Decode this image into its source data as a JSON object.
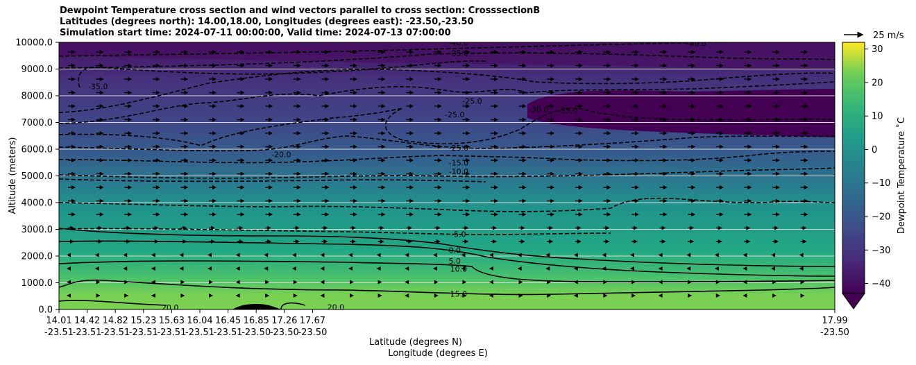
{
  "figure": {
    "title_lines": [
      "Dewpoint Temperature cross section and wind vectors parallel to cross section: CrosssectionB",
      "Latitudes (degrees north): 14.00,18.00, Longitudes (degrees east): -23.50,-23.50",
      "Simulation start time: 2024-07-11 00:00:00, Valid time: 2024-07-13 07:00:00"
    ]
  },
  "chart_data": {
    "type": "heatmap",
    "variable": "Dewpoint Temperature",
    "ylabel": "Altitude (meters)",
    "xlabel_lines": [
      "Latitude (degrees N)",
      "Longitude (degrees E)"
    ],
    "ylim": [
      0,
      10000
    ],
    "y_ticks": [
      "0.0",
      "1000.0",
      "2000.0",
      "3000.0",
      "4000.0",
      "5000.0",
      "6000.0",
      "7000.0",
      "8000.0",
      "9000.0",
      "10000.0"
    ],
    "x_tick_labels": [
      {
        "lat": "14.01",
        "lon": "-23.51"
      },
      {
        "lat": "14.42",
        "lon": "-23.51"
      },
      {
        "lat": "14.82",
        "lon": "-23.51"
      },
      {
        "lat": "15.23",
        "lon": "-23.51"
      },
      {
        "lat": "15.63",
        "lon": "-23.51"
      },
      {
        "lat": "16.04",
        "lon": "-23.51"
      },
      {
        "lat": "16.45",
        "lon": "-23.51"
      },
      {
        "lat": "16.85",
        "lon": "-23.50"
      },
      {
        "lat": "17.26",
        "lon": "-23.50"
      },
      {
        "lat": "17.67",
        "lon": "-23.50"
      },
      {
        "lat": "17.99",
        "lon": "-23.50"
      }
    ],
    "x_range_lat": [
      14.01,
      17.99
    ],
    "grid": "horizontal",
    "colorbar": {
      "label": "Dewpoint Temperature  ˚C",
      "range": [
        -43,
        32
      ],
      "ticks": [
        "30",
        "20",
        "10",
        "0",
        "−10",
        "−20",
        "−30",
        "−40"
      ],
      "tick_values": [
        30,
        20,
        10,
        0,
        -10,
        -20,
        -30,
        -40
      ],
      "colormap": "viridis",
      "extend": "min"
    },
    "wind_key": {
      "label": "25 m/s"
    },
    "contour_labels": [
      {
        "text": "-40.0",
        "lat": 16.06,
        "alt": 9990
      },
      {
        "text": "-35.0",
        "lat": 16.06,
        "alt": 9600
      },
      {
        "text": "-35.0",
        "lat": 14.21,
        "alt": 8350
      },
      {
        "text": "-40.0",
        "lat": 17.28,
        "alt": 9960
      },
      {
        "text": "-30.0",
        "lat": 16.47,
        "alt": 7500
      },
      {
        "text": "-35.0",
        "lat": 16.62,
        "alt": 7450
      },
      {
        "text": "-25.0",
        "lat": 16.04,
        "alt": 7300
      },
      {
        "text": "-25.0",
        "lat": 16.13,
        "alt": 7800
      },
      {
        "text": "-25.0",
        "lat": 16.06,
        "alt": 6050
      },
      {
        "text": "-20.0",
        "lat": 15.15,
        "alt": 5800
      },
      {
        "text": "-15.0",
        "lat": 16.06,
        "alt": 5500
      },
      {
        "text": "-10.0",
        "lat": 16.06,
        "alt": 5170
      },
      {
        "text": "-5.0",
        "lat": 16.06,
        "alt": 2820
      },
      {
        "text": "0.0",
        "lat": 16.04,
        "alt": 2220
      },
      {
        "text": "5.0",
        "lat": 16.04,
        "alt": 1820
      },
      {
        "text": "10.0",
        "lat": 16.06,
        "alt": 1520
      },
      {
        "text": "15.0",
        "lat": 16.06,
        "alt": 590
      },
      {
        "text": "20.0",
        "lat": 14.58,
        "alt": 80
      },
      {
        "text": "20.0",
        "lat": 15.43,
        "alt": 90
      }
    ]
  }
}
